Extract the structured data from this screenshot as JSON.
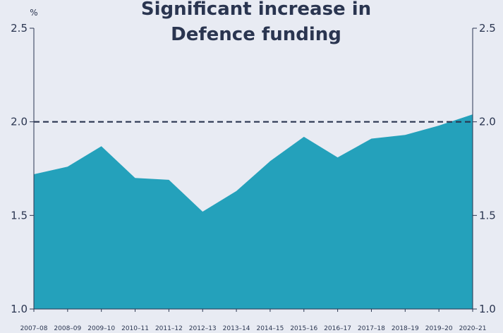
{
  "chart_data": {
    "type": "area",
    "title_lines": [
      "Significant increase in",
      "Defence funding"
    ],
    "ylabel": "%",
    "ylim": [
      1.0,
      2.5
    ],
    "yticks": [
      "1.0",
      "1.5",
      "2.0",
      "2.5"
    ],
    "yticks_right": [
      "1.0",
      "1.5",
      "2.0",
      "2.5"
    ],
    "grid": false,
    "categories": [
      "2007–08",
      "2008–09",
      "2009–10",
      "2010–11",
      "2011–12",
      "2012–13",
      "2013–14",
      "2014–15",
      "2015–16",
      "2016–17",
      "2017–18",
      "2018–19",
      "2019–20",
      "2020–21"
    ],
    "values": [
      1.72,
      1.76,
      1.87,
      1.7,
      1.69,
      1.52,
      1.63,
      1.79,
      1.92,
      1.81,
      1.91,
      1.93,
      1.98,
      2.04
    ],
    "reference_line": {
      "value": 2.0,
      "style": "dashed"
    },
    "colors": {
      "area": "#24a1bb",
      "reference_line": "#2a3550",
      "axis": "#2a3550",
      "background": "#e8ebf3"
    }
  }
}
